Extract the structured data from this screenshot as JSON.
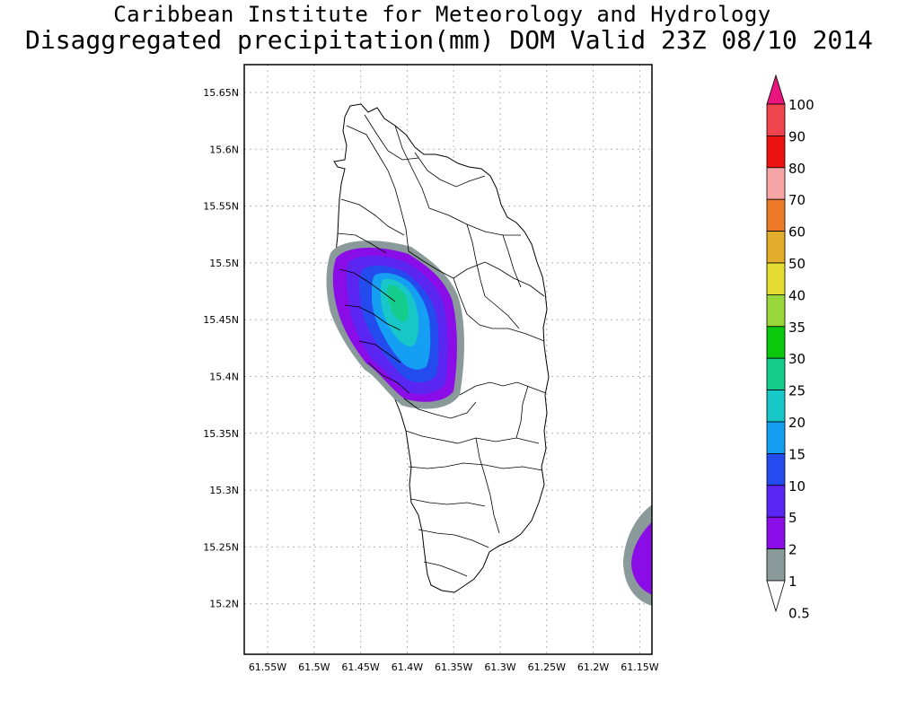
{
  "title_line1": "Caribbean Institute for Meteorology and Hydrology",
  "title_line2": "Disaggregated precipitation(mm) DOM Valid 23Z 08/10 2014",
  "map": {
    "lat_ticks": [
      "15.65N",
      "15.6N",
      "15.55N",
      "15.5N",
      "15.45N",
      "15.4N",
      "15.35N",
      "15.3N",
      "15.25N",
      "15.2N"
    ],
    "lon_ticks": [
      "61.55W",
      "61.5W",
      "61.45W",
      "61.4W",
      "61.35W",
      "61.3W",
      "61.25W",
      "61.2W",
      "61.15W"
    ],
    "grid": true
  },
  "colorbar": {
    "labels": [
      "100",
      "90",
      "80",
      "70",
      "60",
      "50",
      "40",
      "35",
      "30",
      "25",
      "20",
      "15",
      "10",
      "5",
      "2",
      "1",
      "0.5"
    ],
    "colors": [
      "#e8157e",
      "#f0454f",
      "#ee1111",
      "#f7a6a6",
      "#ee7b2a",
      "#e1ad2b",
      "#e3dc32",
      "#97d73a",
      "#0cc80c",
      "#14cc8b",
      "#18c8c8",
      "#159ff2",
      "#244bee",
      "#5b26f2",
      "#8a0ce6",
      "#8a9a9a",
      "#ffffff"
    ]
  }
}
